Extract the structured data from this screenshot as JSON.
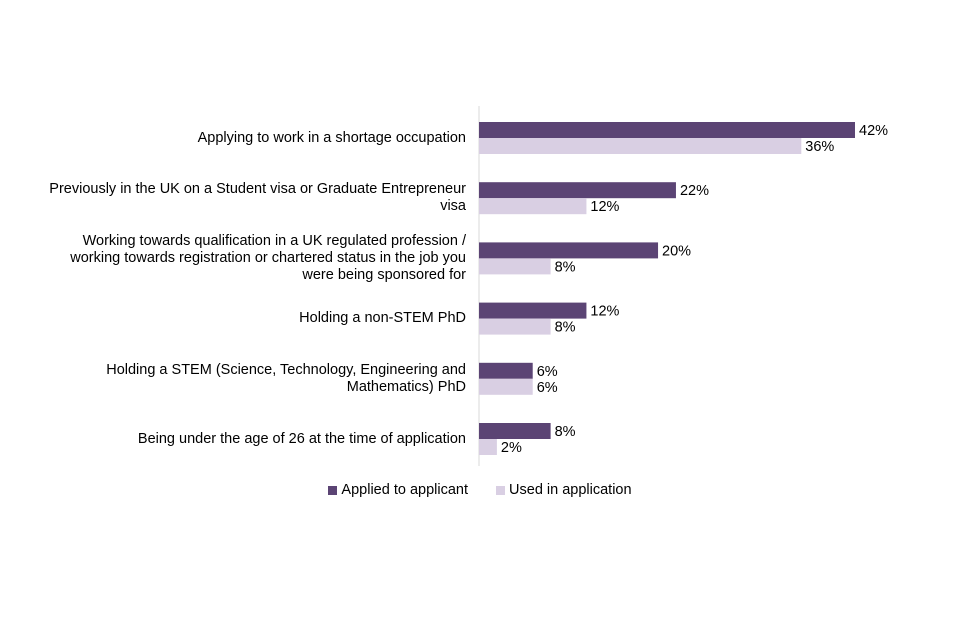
{
  "colors": {
    "applied": "#5b4474",
    "used": "#d9cfe3",
    "axis": "#d9d9d9"
  },
  "chart_data": {
    "type": "bar",
    "orientation": "horizontal",
    "categories": [
      "Applying to work in a shortage occupation",
      "Previously in the UK on a Student visa or Graduate Entrepreneur visa",
      "Working towards qualification in a UK regulated profession  / working towards registration or chartered status in the job you were being sponsored for",
      "Holding a non-STEM PhD",
      "Holding a STEM (Science, Technology, Engineering and Mathematics) PhD",
      "Being under the age of 26 at the time of application"
    ],
    "category_lines": [
      [
        "Applying to work in a shortage occupation"
      ],
      [
        "Previously in the UK on a Student visa or Graduate Entrepreneur",
        "visa"
      ],
      [
        "Working towards qualification in a UK regulated profession  /",
        "working towards registration or chartered status in the job you",
        "were being sponsored for"
      ],
      [
        "Holding a non-STEM PhD"
      ],
      [
        "Holding a STEM (Science, Technology, Engineering and",
        "Mathematics) PhD"
      ],
      [
        "Being under the age of 26 at the time of application"
      ]
    ],
    "series": [
      {
        "name": "Applied to applicant",
        "values": [
          42,
          22,
          20,
          12,
          6,
          8
        ],
        "labels": [
          "42%",
          "22%",
          "20%",
          "12%",
          "6%",
          "8%"
        ]
      },
      {
        "name": "Used in application",
        "values": [
          36,
          12,
          8,
          8,
          6,
          2
        ],
        "labels": [
          "36%",
          "12%",
          "8%",
          "8%",
          "6%",
          "2%"
        ]
      }
    ],
    "value_unit": "%",
    "xlim": [
      0,
      45
    ],
    "legend_position": "bottom",
    "grid": false
  }
}
